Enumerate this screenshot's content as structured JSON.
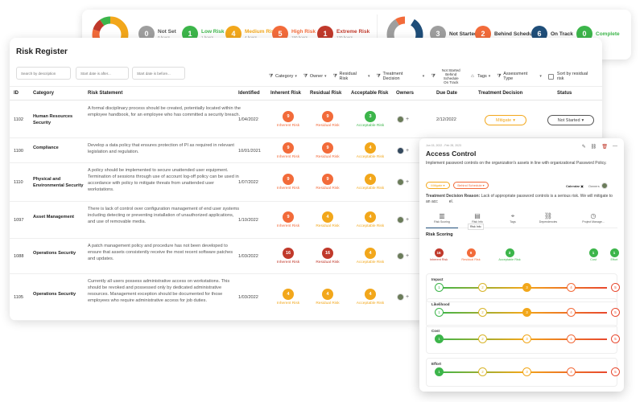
{
  "summary": {
    "risk_stats": [
      {
        "count": "0",
        "label": "Not Set",
        "sub": "0 hours",
        "color": "#9e9e9e",
        "label_color": "#555555"
      },
      {
        "count": "1",
        "label": "Low Risk",
        "sub": "1 hours",
        "color": "#3cb54a",
        "label_color": "#3cb54a"
      },
      {
        "count": "4",
        "label": "Medium Risk",
        "sub": "4 hours",
        "color": "#f2a71b",
        "label_color": "#f2a71b"
      },
      {
        "count": "5",
        "label": "High Risk",
        "sub": "150 hours",
        "color": "#f26b3a",
        "label_color": "#f26b3a"
      },
      {
        "count": "1",
        "label": "Extreme Risk",
        "sub": "120 hours",
        "color": "#c0392b",
        "label_color": "#c0392b"
      }
    ],
    "status_stats": [
      {
        "count": "3",
        "label": "Not Started",
        "color": "#9e9e9e",
        "label_color": "#333333"
      },
      {
        "count": "2",
        "label": "Behind Schedule",
        "color": "#f26b3a",
        "label_color": "#333333"
      },
      {
        "count": "6",
        "label": "On Track",
        "color": "#1f4e79",
        "label_color": "#333333"
      },
      {
        "count": "0",
        "label": "Complete",
        "color": "#3cb54a",
        "label_color": "#3cb54a"
      }
    ]
  },
  "register": {
    "title": "Risk Register",
    "search_placeholder": "Search by description",
    "start_after_placeholder": "Start date is after...",
    "start_before_placeholder": "Start date is before...",
    "filters": {
      "category": "Category",
      "owner": "Owner",
      "residual": "Residual Risk",
      "treatment": "Treatment Decision",
      "status_line1": "Not Started",
      "status_line2": "Behind Schedule",
      "status_line3": "On Track",
      "tags": "Tags",
      "assessment": "Assessment Type",
      "sort": "Sort by residual risk"
    },
    "columns": {
      "id": "ID",
      "category": "Category",
      "statement": "Risk Statement",
      "identified": "Identified",
      "inherent": "Inherent Risk",
      "residual": "Residual Risk",
      "acceptable": "Acceptable Risk",
      "owners": "Owners",
      "due": "Due Date",
      "treatment": "Treatment Decision",
      "status": "Status"
    },
    "rows": [
      {
        "id": "1102",
        "category": "Human Resources Security",
        "statement": "A formal disciplinary process should be created, potentially located within the employee handbook, for an employee who has committed a security breach.",
        "identified": "1/04/2022",
        "inherent": "9",
        "inherent_label": "Inherent Risk",
        "residual": "9",
        "residual_label": "Residual Risk",
        "acceptable": "3",
        "acceptable_label": "Acceptable Risk",
        "due": "2/12/2022",
        "treatment": "Mitigate",
        "status": "Not Started"
      },
      {
        "id": "1100",
        "category": "Compliance",
        "statement": "Develop a data policy that ensures protection of PI as required in relevant legislation and regulation.",
        "identified": "10/01/2021",
        "inherent": "9",
        "inherent_label": "Inherent Risk",
        "residual": "9",
        "residual_label": "Residual Risk",
        "acceptable": "4",
        "acceptable_label": "Acceptable Risk",
        "due": "",
        "treatment": "",
        "status": ""
      },
      {
        "id": "1110",
        "category": "Physical and Environmental Security",
        "statement": "A policy should be implemented to secure unattended user equipment. Termination of sessions through use of account log-off policy can be used in accordance with policy to mitigate threats from unattended user workstations.",
        "identified": "1/07/2022",
        "inherent": "9",
        "inherent_label": "Inherent Risk",
        "residual": "9",
        "residual_label": "Residual Risk",
        "acceptable": "4",
        "acceptable_label": "Acceptable Risk",
        "due": "",
        "treatment": "",
        "status": ""
      },
      {
        "id": "1097",
        "category": "Asset Management",
        "statement": "There is lack of control over configuration management of end user systems including detecting or preventing installation of unauthorized applications, and use of removable media.",
        "identified": "1/10/2022",
        "inherent": "9",
        "inherent_label": "Inherent Risk",
        "residual": "4",
        "residual_label": "Residual Risk",
        "acceptable": "4",
        "acceptable_label": "Acceptable Risk",
        "due": "",
        "treatment": "",
        "status": ""
      },
      {
        "id": "1088",
        "category": "Operations Security",
        "statement": "A patch management policy and procedure has not been developed to ensure that assets consistently receive the most recent software patches and updates.",
        "identified": "1/03/2022",
        "inherent": "16",
        "inherent_label": "Inherent Risk",
        "residual": "16",
        "residual_label": "Residual Risk",
        "acceptable": "4",
        "acceptable_label": "Acceptable Risk",
        "due": "",
        "treatment": "",
        "status": ""
      },
      {
        "id": "1105",
        "category": "Operations Security",
        "statement": "Currently all users possess administrative access on workstations. This should be revoked and possessed only by dedicated administrative resources. Management exception should be documented for those employees who require administrative access for job duties.",
        "identified": "1/03/2022",
        "inherent": "4",
        "inherent_label": "Inherent Risk",
        "residual": "4",
        "residual_label": "Residual Risk",
        "acceptable": "4",
        "acceptable_label": "Acceptable Risk",
        "due": "",
        "treatment": "",
        "status": ""
      }
    ]
  },
  "panel": {
    "date": "Jun 15, 2022 - Feb 28, 2023",
    "title": "Access Control",
    "description": "Implement password controls on the organization's assets in line with organizational Password Policy.",
    "tag_mitigate": "Mitigate",
    "tag_behind": "Behind Schedule",
    "calendar": "Calendar",
    "owners": "Owners",
    "reason_label": "Treatment Decision Reason:",
    "reason_text": "Lack of appropriate password controls is a serious risk. We will mitigate to an acc",
    "reason_tail": "el.",
    "tooltip": "Risk Info",
    "tabs": [
      "Risk Scoring",
      "Risk Info",
      "Tags",
      "Dependencies",
      "Project Manage..."
    ],
    "section": "Risk Scoring",
    "scores": [
      {
        "value": "16",
        "label": "Inherent Risk",
        "color": "#c0392b",
        "label_color": "#c0392b"
      },
      {
        "value": "9",
        "label": "Residual Risk",
        "color": "#f26b3a",
        "label_color": "#f26b3a"
      },
      {
        "value": "3",
        "label": "Acceptable Risk",
        "color": "#3cb54a",
        "label_color": "#3cb54a"
      },
      {
        "value": "1",
        "label": "Cost",
        "color": "#3cb54a",
        "label_color": "#3cb54a"
      },
      {
        "value": "1",
        "label": "Effort",
        "color": "#3cb54a",
        "label_color": "#3cb54a"
      }
    ],
    "scales": [
      {
        "name": "Impact",
        "selected": 3
      },
      {
        "name": "Likelihood",
        "selected": 3
      },
      {
        "name": "Cost",
        "selected": 1
      },
      {
        "name": "Effort",
        "selected": 1
      }
    ],
    "scale_values": [
      "1",
      "2",
      "3",
      "4",
      "5"
    ],
    "scale_colors": [
      "#3cb54a",
      "#d8b42a",
      "#f2a71b",
      "#f26b3a",
      "#e8482e"
    ]
  }
}
